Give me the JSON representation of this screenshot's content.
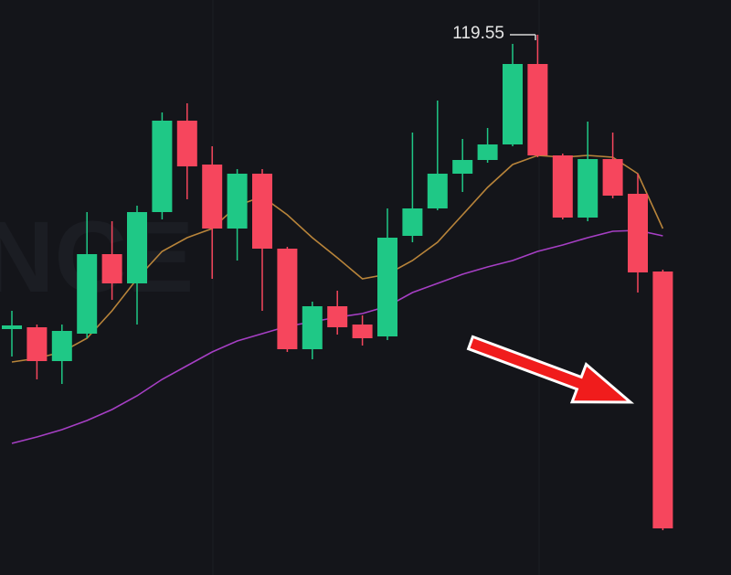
{
  "chart_data": {
    "type": "candlestick",
    "watermark": "NCE",
    "up_color": "#1fc886",
    "down_color": "#f6465d",
    "ylim": [
      90,
      120
    ],
    "open": [
      103.45,
      103.55,
      101.7,
      103.2,
      107.55,
      105.95,
      109.85,
      114.85,
      112.45,
      108.95,
      111.95,
      107.85,
      102.35,
      104.7,
      103.7,
      103.05,
      108.55,
      110.05,
      111.95,
      112.7,
      113.55,
      117.95,
      112.95,
      109.55,
      112.75,
      110.85,
      106.6
    ],
    "high": [
      104.45,
      103.7,
      103.7,
      109.85,
      109.35,
      110.2,
      115.3,
      115.8,
      113.45,
      112.2,
      112.2,
      107.95,
      104.95,
      105.55,
      104.2,
      110.05,
      114.2,
      115.95,
      113.85,
      114.45,
      119.05,
      119.55,
      113.05,
      114.8,
      114.2,
      111.95,
      106.7
    ],
    "low": [
      101.95,
      100.7,
      100.45,
      102.95,
      105.05,
      103.7,
      109.45,
      110.55,
      106.2,
      107.2,
      104.45,
      102.2,
      101.8,
      103.15,
      102.55,
      102.85,
      108.2,
      109.95,
      110.95,
      112.55,
      113.45,
      112.85,
      109.45,
      109.35,
      110.6,
      105.45,
      92.45
    ],
    "close": [
      103.65,
      101.7,
      103.35,
      107.55,
      105.95,
      109.85,
      114.85,
      112.35,
      108.95,
      111.95,
      107.85,
      102.35,
      104.7,
      103.55,
      102.95,
      108.45,
      110.05,
      111.95,
      112.7,
      113.55,
      117.95,
      112.95,
      109.55,
      112.75,
      110.75,
      106.55,
      92.55
    ],
    "ma_lines": [
      {
        "color": "#b8843a",
        "values": [
          101.65,
          101.85,
          102.2,
          102.95,
          104.45,
          106.2,
          107.7,
          108.45,
          108.95,
          110.2,
          110.7,
          109.7,
          108.45,
          107.35,
          106.2,
          106.45,
          107.2,
          108.2,
          109.7,
          111.2,
          112.45,
          112.95,
          112.85,
          112.95,
          112.85,
          111.95,
          108.95
        ]
      },
      {
        "color": "#a63fc4",
        "values": [
          97.2,
          97.55,
          97.95,
          98.45,
          99.05,
          99.8,
          100.7,
          101.45,
          102.2,
          102.8,
          103.2,
          103.6,
          103.85,
          104.1,
          104.3,
          104.7,
          105.45,
          105.95,
          106.45,
          106.85,
          107.2,
          107.7,
          108.05,
          108.45,
          108.8,
          108.85,
          108.55
        ]
      }
    ]
  }
}
